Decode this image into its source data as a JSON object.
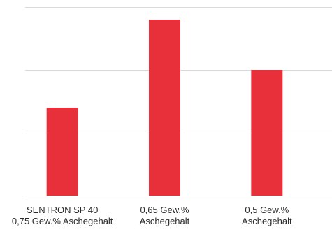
{
  "chart_data": {
    "type": "bar",
    "categories": [
      "SENTRON SP 40\n0,75 Gew.% Aschegehalt",
      "0,65 Gew.%\nAschegehalt",
      "0,5 Gew.%\nAschegehalt"
    ],
    "values": [
      1.4,
      2.8,
      2.0
    ],
    "ylim": [
      0,
      3
    ],
    "grid": true,
    "bar_color": "#e8303a",
    "gridline_color": "#d9d9d9",
    "title": "",
    "xlabel": "",
    "ylabel": ""
  }
}
